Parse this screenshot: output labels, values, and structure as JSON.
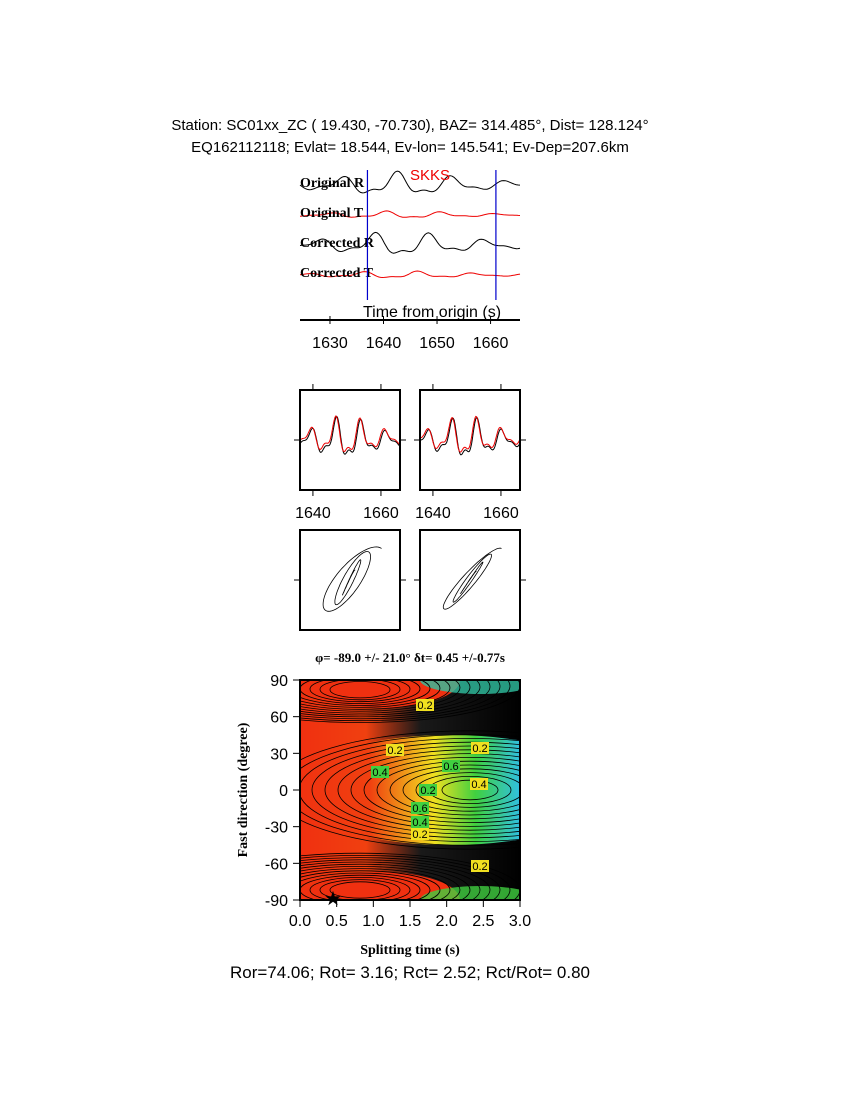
{
  "header": {
    "line1": "Station: SC01xx_ZC (  19.430,  -70.730), BAZ=  314.485°, Dist=  128.124°",
    "line2": "EQ162112118; Evlat=  18.544, Ev-lon= 145.541; Ev-Dep=207.6km"
  },
  "traces": {
    "labels": [
      "Original R",
      "Original T",
      "Corrected R",
      "Corrected T"
    ],
    "phase": "SKKS",
    "xlabel": "Time from origin (s)",
    "xlim": [
      1624.4,
      1665.5
    ],
    "xticks": [
      1630,
      1640,
      1650,
      1660
    ],
    "window": [
      1637,
      1661
    ]
  },
  "waveform_panels": {
    "xlim": [
      1636.2,
      1665.6
    ],
    "xticks": [
      1640,
      1660
    ]
  },
  "grid_search": {
    "title": "φ= -89.0 +/- 21.0° δt= 0.45 +/-0.77s",
    "xlabel": "Splitting time (s)",
    "ylabel": "Fast direction (degree)",
    "xlim": [
      0,
      3
    ],
    "ylim": [
      -90,
      90
    ],
    "xticks": [
      {
        "value": 0,
        "label": "0.0"
      },
      0.5,
      {
        "value": 1,
        "label": "1.0"
      },
      1.5,
      {
        "value": 2,
        "label": "2.0"
      },
      2.5,
      {
        "value": 3,
        "label": "3.0"
      }
    ],
    "yticks": [
      -90,
      -60,
      -30,
      0,
      30,
      60,
      90
    ],
    "best": {
      "dt": 0.45,
      "phi": -89
    },
    "contour_labels": [
      "0.2",
      "0.2",
      "0.4",
      "0.2",
      "0.4",
      "0.6",
      "0.2",
      "0.6",
      "0.4",
      "0.2",
      "0.2"
    ]
  },
  "footer": "Ror=74.06; Rot= 3.16; Rct= 2.52; Rct/Rot= 0.80"
}
